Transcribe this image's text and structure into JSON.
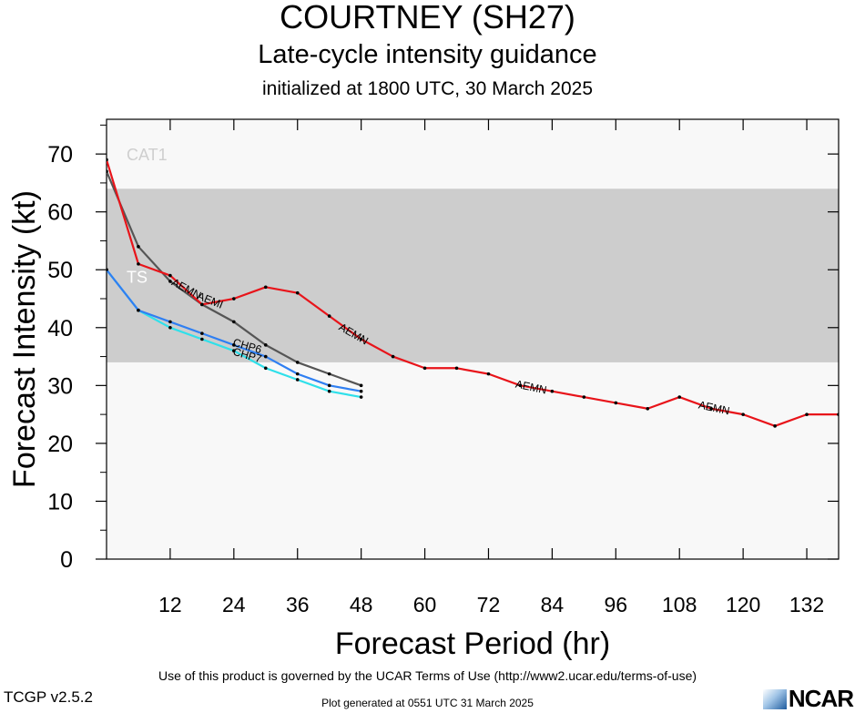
{
  "header": {
    "title": "COURTNEY (SH27)",
    "subtitle": "Late-cycle intensity guidance",
    "initialized": "initialized at 1800 UTC, 30 March 2025"
  },
  "footer": {
    "terms": "Use of this product is governed by the UCAR Terms of Use (http://www2.ucar.edu/terms-of-use)",
    "version": "TCGP v2.5.2",
    "generated": "Plot generated at 0551 UTC   31 March 2025",
    "logo_text": "NCAR"
  },
  "colors": {
    "band_light": "#f8f8f8",
    "band_ts": "#cdcdcd",
    "AEMN": "#e8141a",
    "AEMI": "#555555",
    "CHP6": "#2f7ff2",
    "CHP7": "#2fe0ea"
  },
  "chart_data": {
    "type": "line",
    "xlabel": "Forecast Period (hr)",
    "ylabel": "Forecast Intensity (kt)",
    "xlim": [
      0,
      138
    ],
    "ylim": [
      0,
      76
    ],
    "xticks": [
      12,
      24,
      36,
      48,
      60,
      72,
      84,
      96,
      108,
      120,
      132
    ],
    "yticks": [
      0,
      10,
      20,
      30,
      40,
      50,
      60,
      70
    ],
    "bands": [
      {
        "label": "TS",
        "from": 34,
        "to": 64
      },
      {
        "label": "CAT1",
        "from": 64,
        "to": 83
      }
    ],
    "series": [
      {
        "name": "AEMN",
        "x": [
          0,
          6,
          12,
          18,
          24,
          30,
          36,
          42,
          48,
          54,
          60,
          66,
          72,
          78,
          84,
          90,
          96,
          102,
          108,
          114,
          120,
          126,
          132,
          138
        ],
        "values": [
          69,
          51,
          49,
          44,
          45,
          47,
          46,
          42,
          38,
          35,
          33,
          33,
          32,
          30,
          29,
          28,
          27,
          26,
          28,
          26,
          25,
          23,
          25,
          25
        ]
      },
      {
        "name": "AEMI",
        "x": [
          0,
          6,
          12,
          18,
          24,
          30,
          36,
          42,
          48
        ],
        "values": [
          67,
          54,
          48,
          44,
          41,
          37,
          34,
          32,
          30
        ]
      },
      {
        "name": "CHP6",
        "x": [
          0,
          6,
          12,
          18,
          24,
          30,
          36,
          42,
          48
        ],
        "values": [
          50,
          43,
          41,
          39,
          37,
          35,
          32,
          30,
          29
        ]
      },
      {
        "name": "CHP7",
        "x": [
          0,
          6,
          12,
          18,
          24,
          30,
          36,
          42,
          48
        ],
        "values": [
          50,
          43,
          40,
          38,
          36,
          33,
          31,
          29,
          28
        ]
      }
    ],
    "series_labels": [
      {
        "text": "AEMN",
        "x": 15,
        "y": 46.6,
        "angle": 28,
        "series": "AEMN"
      },
      {
        "text": "AEMN",
        "x": 46.5,
        "y": 38.8,
        "angle": 30,
        "series": "AEMN"
      },
      {
        "text": "AEMN",
        "x": 80,
        "y": 29.6,
        "angle": 12,
        "series": "AEMN"
      },
      {
        "text": "AEMN",
        "x": 114.5,
        "y": 26,
        "angle": 12,
        "series": "AEMN"
      },
      {
        "text": "AEMI",
        "x": 19.5,
        "y": 44.6,
        "angle": 22,
        "series": "AEMI"
      },
      {
        "text": "CHP6",
        "x": 26.5,
        "y": 36.7,
        "angle": 16,
        "series": "CHP6"
      },
      {
        "text": "CHP7",
        "x": 26.5,
        "y": 35.1,
        "angle": 16,
        "series": "CHP7"
      }
    ]
  }
}
